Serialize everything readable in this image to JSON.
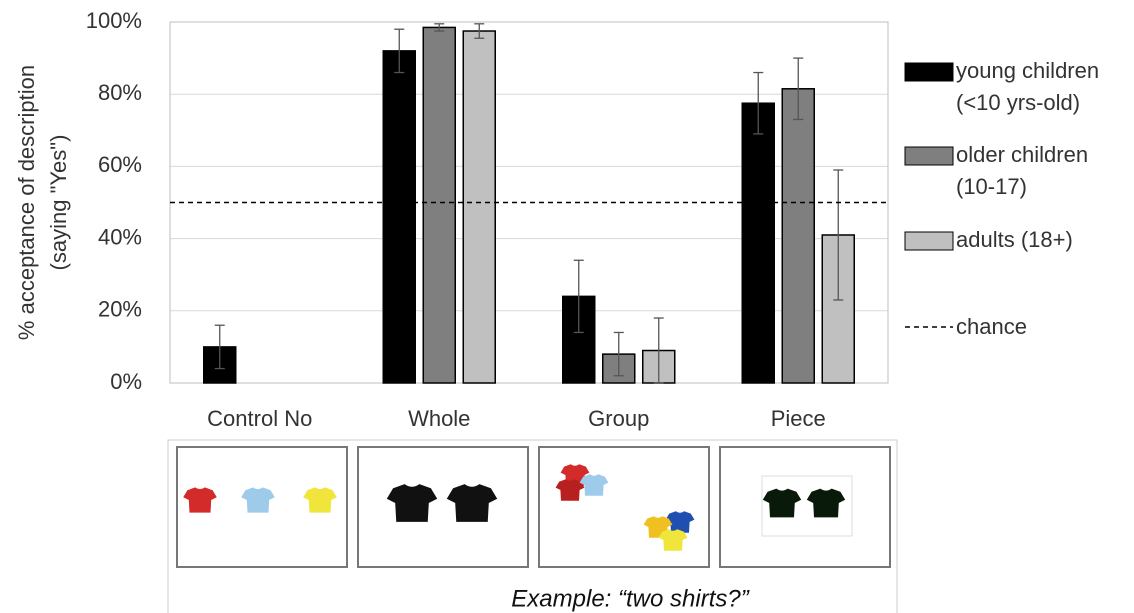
{
  "chart_data": {
    "type": "bar",
    "y_label": [
      "% acceptance of description",
      "(saying \"Yes\")"
    ],
    "categories": [
      "Control No",
      "Whole",
      "Group",
      "Piece"
    ],
    "series": [
      {
        "name": "young children (<10 yrs-old)",
        "color": "#000000",
        "values": [
          10,
          92,
          24,
          77.5
        ],
        "errors": [
          6,
          6,
          10,
          8.5
        ]
      },
      {
        "name": "older children (10-17)",
        "color": "#7f7f7f",
        "values": [
          null,
          98.5,
          8,
          81.5
        ],
        "errors": [
          null,
          1,
          6,
          8.5
        ]
      },
      {
        "name": "adults (18+)",
        "color": "#c0c0c0",
        "values": [
          null,
          97.5,
          9,
          41
        ],
        "errors": [
          null,
          2,
          9,
          18
        ]
      }
    ],
    "reference_line": {
      "value": 50,
      "label": "chance"
    },
    "ylim": [
      0,
      100
    ],
    "yticks": [
      {
        "value": 0,
        "label": "0%"
      },
      {
        "value": 20,
        "label": "20%"
      },
      {
        "value": 40,
        "label": "40%"
      },
      {
        "value": 60,
        "label": "60%"
      },
      {
        "value": 80,
        "label": "80%"
      },
      {
        "value": 100,
        "label": "100%"
      }
    ],
    "grid": true,
    "legend": "right"
  },
  "example_caption": "Example: “two shirts?”"
}
